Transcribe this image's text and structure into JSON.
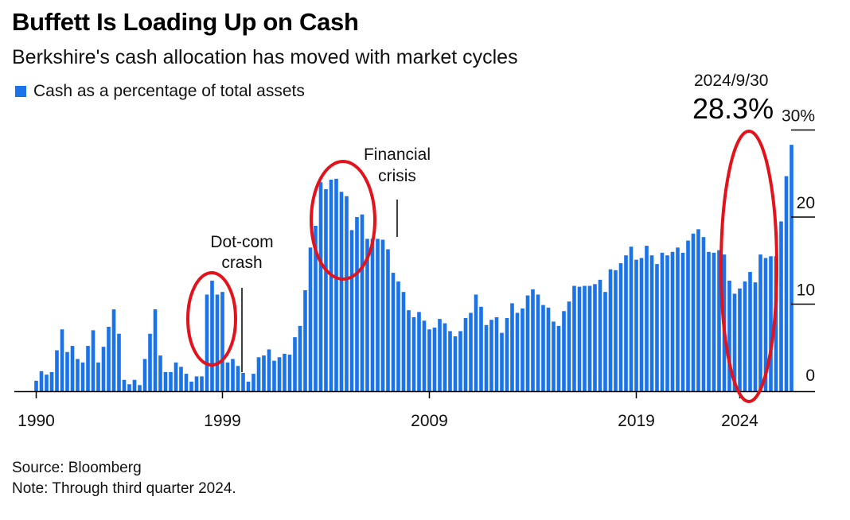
{
  "header": {
    "title": "Buffett Is Loading Up on Cash",
    "subtitle": "Berkshire's cash allocation has moved with market cycles",
    "legend_label": "Cash as a percentage of total assets"
  },
  "callout": {
    "date": "2024/9/30",
    "value": "28.3%"
  },
  "annotations": [
    {
      "id": "dotcom",
      "lines": [
        "Dot-com",
        "crash"
      ]
    },
    {
      "id": "financial",
      "lines": [
        "Financial",
        "crisis"
      ]
    }
  ],
  "footer": {
    "source": "Source: Bloomberg",
    "note": "Note: Through third quarter 2024."
  },
  "colors": {
    "bar": "#1a73e8",
    "highlight": "#e3121b",
    "axis": "#000000"
  },
  "chart_data": {
    "type": "bar",
    "frequency": "quarterly",
    "x_start": "1990 Q1",
    "x_end": "2024 Q3",
    "x_tick_labels": [
      "1990",
      "1999",
      "2009",
      "2019",
      "2024"
    ],
    "y_tick_labels": [
      "30%",
      "20",
      "10",
      "0"
    ],
    "ylim": [
      0,
      30
    ],
    "grid": false,
    "legend_position": "top-left",
    "series": [
      {
        "name": "Cash as a percentage of total assets",
        "values": [
          1.2,
          2.3,
          1.9,
          2.2,
          4.7,
          7.1,
          4.5,
          5.2,
          3.7,
          3.3,
          5.2,
          7.0,
          3.3,
          5.1,
          7.4,
          9.4,
          6.6,
          1.3,
          0.8,
          1.3,
          0.7,
          3.7,
          6.6,
          9.4,
          4.1,
          2.2,
          2.2,
          3.3,
          2.8,
          2.0,
          1.1,
          1.7,
          1.7,
          11.1,
          12.7,
          11.1,
          11.4,
          3.3,
          3.7,
          2.9,
          2.1,
          1.1,
          2.0,
          3.9,
          4.1,
          4.8,
          3.5,
          3.9,
          4.3,
          4.2,
          6.2,
          7.5,
          11.6,
          16.5,
          19.0,
          24.0,
          23.2,
          24.3,
          24.4,
          22.9,
          22.4,
          18.5,
          20.0,
          20.3,
          17.5,
          17.5,
          17.5,
          17.4,
          16.3,
          13.6,
          12.6,
          11.4,
          9.3,
          8.5,
          9.1,
          8.1,
          7.1,
          7.3,
          8.3,
          7.8,
          6.9,
          6.3,
          6.9,
          8.4,
          9.0,
          11.1,
          9.7,
          7.6,
          8.2,
          8.5,
          6.7,
          8.4,
          10.1,
          9.0,
          9.5,
          11.0,
          11.7,
          11.1,
          9.9,
          9.6,
          8.0,
          7.5,
          9.2,
          10.3,
          12.1,
          12.0,
          12.1,
          12.1,
          12.3,
          12.8,
          11.4,
          14.0,
          13.9,
          14.7,
          15.6,
          16.6,
          15.1,
          15.3,
          16.7,
          15.6,
          14.6,
          15.9,
          15.6,
          16.0,
          16.5,
          15.9,
          17.3,
          18.1,
          18.6,
          17.7,
          16.0,
          15.9,
          16.2,
          15.7,
          12.7,
          11.2,
          11.8,
          12.6,
          13.7,
          12.5,
          15.7,
          15.3,
          15.5,
          15.5,
          19.5,
          24.7,
          28.3
        ]
      }
    ],
    "annotations": [
      {
        "text": "Dot-com crash",
        "x": "1999 Q4"
      },
      {
        "text": "Financial crisis",
        "x": "2007 Q4"
      },
      {
        "text": "2024/9/30 28.3%",
        "x": "2024 Q3"
      }
    ]
  }
}
